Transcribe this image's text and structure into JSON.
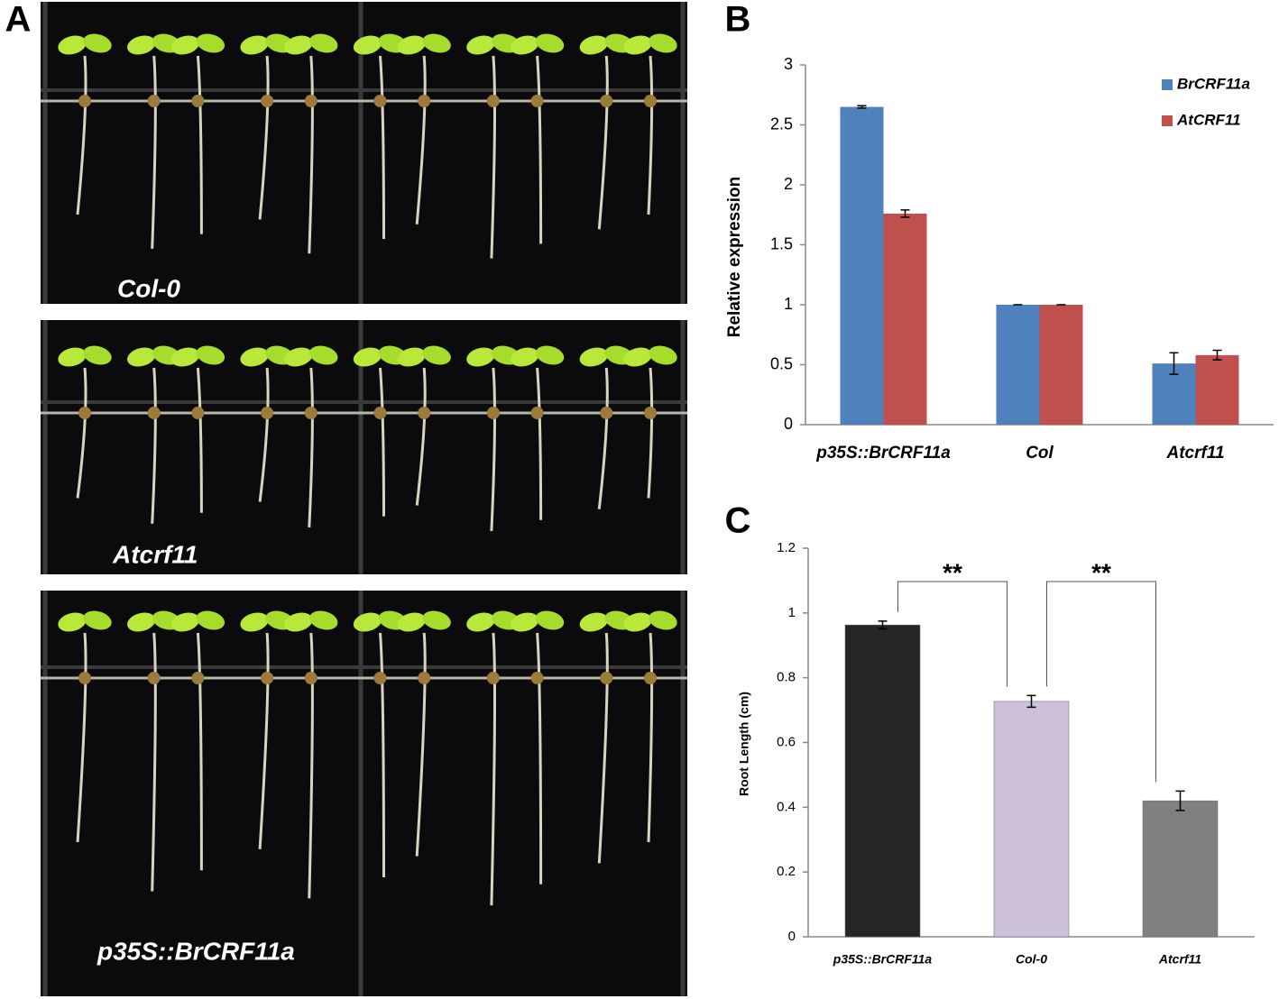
{
  "panel_labels": [
    "A",
    "B",
    "C"
  ],
  "photos": [
    {
      "label": "Col-0"
    },
    {
      "label": "Atcrf11"
    },
    {
      "label": "p35S::BrCRF11a"
    }
  ],
  "chart_data": [
    {
      "type": "bar",
      "ylabel": "Relative expression",
      "categories": [
        "p35S::BrCRF11a",
        "Col",
        "Atcrf11"
      ],
      "series": [
        {
          "name": "BrCRF11a",
          "color": "#4f81bd",
          "values": [
            2.65,
            1.0,
            0.51
          ],
          "errors": [
            0.01,
            0,
            0.09
          ]
        },
        {
          "name": "AtCRF11",
          "color": "#c0504d",
          "values": [
            1.76,
            1.0,
            0.58
          ],
          "errors": [
            0.03,
            0,
            0.04
          ]
        }
      ],
      "ylim": [
        0,
        3
      ],
      "yticks": [
        0,
        0.5,
        1,
        1.5,
        2,
        2.5,
        3
      ],
      "legend": "top-right"
    },
    {
      "type": "bar",
      "ylabel": "Root Length (cm)",
      "categories": [
        "p35S::BrCRF11a",
        "Col-0",
        "Atcrf11"
      ],
      "values": [
        0.963,
        0.727,
        0.42
      ],
      "errors": [
        0.012,
        0.018,
        0.03
      ],
      "colors": [
        "#262626",
        "#ccc0da",
        "#808080"
      ],
      "ylim": [
        0,
        1.2
      ],
      "yticks": [
        0,
        0.2,
        0.4,
        0.6,
        0.8,
        1,
        1.2
      ],
      "annotations": [
        {
          "text": "**",
          "from": 0,
          "to": 1
        },
        {
          "text": "**",
          "from": 1,
          "to": 2
        }
      ]
    }
  ]
}
